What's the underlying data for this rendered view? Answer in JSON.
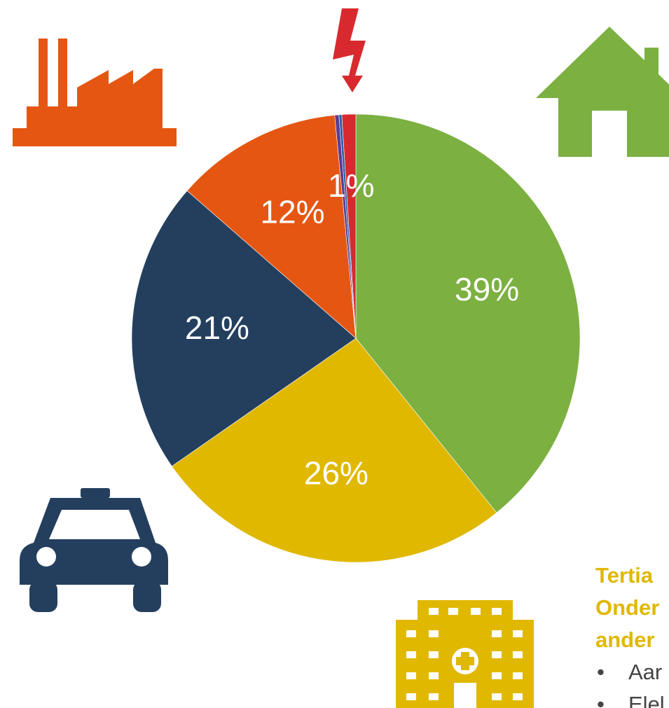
{
  "chart_data": {
    "type": "pie",
    "values": [
      39,
      26,
      21,
      12,
      0.3,
      0.2,
      1
    ],
    "value_labels": [
      "39%",
      "26%",
      "21%",
      "12%",
      null,
      null,
      "1%"
    ],
    "colors": [
      "#7cb041",
      "#e0b800",
      "#243f5e",
      "#e55613",
      "#5b3d8f",
      "#2a5fae",
      "#d82a2e"
    ]
  },
  "side_text": {
    "heading": [
      "Tertia",
      "Onder",
      "ander"
    ],
    "bullets": [
      "Aar",
      "Elel"
    ]
  }
}
